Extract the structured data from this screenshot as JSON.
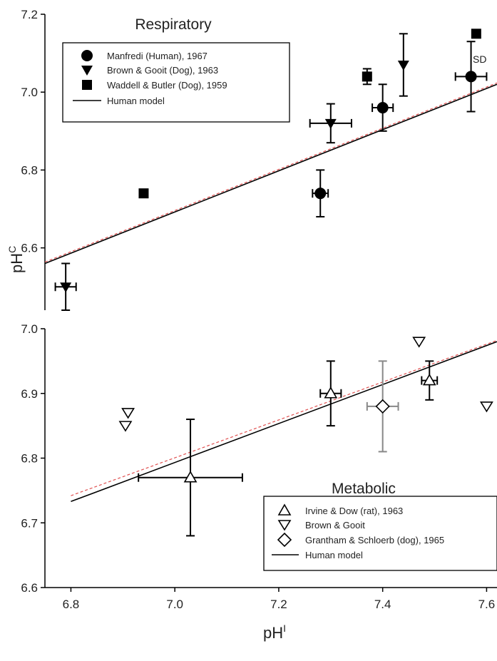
{
  "chart_data": [
    {
      "type": "scatter",
      "title": "Respiratory",
      "ylabel": "pHC",
      "ylabel_parts": {
        "main": "pH",
        "sup": "C"
      },
      "xlim": [
        6.75,
        7.62
      ],
      "ylim": [
        6.44,
        7.2
      ],
      "y_ticks": [
        "6.6",
        "6.8",
        "7.0",
        "7.2"
      ],
      "annotation": "SD",
      "legend_position": "top-left",
      "series": [
        {
          "name": "Manfredi (Human), 1967",
          "marker": "filled-circle",
          "points": [
            {
              "x": 7.28,
              "y": 6.74,
              "xerr": 0.015,
              "yerr": 0.06
            },
            {
              "x": 7.4,
              "y": 6.96,
              "xerr": 0.02,
              "yerr": 0.06
            },
            {
              "x": 7.57,
              "y": 7.04,
              "xerr": 0.03,
              "yerr": 0.09
            }
          ]
        },
        {
          "name": "Brown & Gooit (Dog), 1963",
          "marker": "filled-triangle-down",
          "points": [
            {
              "x": 6.79,
              "y": 6.5,
              "xerr": 0.02,
              "yerr": 0.06
            },
            {
              "x": 7.3,
              "y": 6.92,
              "xerr": 0.04,
              "yerr": 0.05
            },
            {
              "x": 7.44,
              "y": 7.07,
              "xerr": 0.0,
              "yerr": 0.08
            }
          ]
        },
        {
          "name": "Waddell & Butler (Dog), 1959",
          "marker": "filled-square",
          "points": [
            {
              "x": 6.94,
              "y": 6.74,
              "xerr": 0,
              "yerr": 0
            },
            {
              "x": 7.37,
              "y": 7.04,
              "xerr": 0,
              "yerr": 0.02
            },
            {
              "x": 7.58,
              "y": 7.15,
              "xerr": 0,
              "yerr": 0
            }
          ]
        },
        {
          "name": "Human model",
          "marker": "line",
          "line": {
            "x": [
              6.75,
              7.62
            ],
            "y": [
              6.56,
              7.02
            ]
          }
        }
      ],
      "secondary_line": {
        "style": "red-dashed",
        "x": [
          6.75,
          7.62
        ],
        "y": [
          6.56,
          7.02
        ]
      }
    },
    {
      "type": "scatter",
      "title": "Metabolic",
      "xlabel": "pHI",
      "xlabel_parts": {
        "main": "pH",
        "sup": "I"
      },
      "xlim": [
        6.75,
        7.62
      ],
      "ylim": [
        6.6,
        7.0
      ],
      "x_ticks": [
        "6.8",
        "7.0",
        "7.2",
        "7.4",
        "7.6"
      ],
      "y_ticks": [
        "6.6",
        "6.7",
        "6.8",
        "6.9",
        "7.0"
      ],
      "legend_position": "bottom-right",
      "series": [
        {
          "name": "Irvine & Dow (rat), 1963",
          "marker": "open-triangle-up",
          "points": [
            {
              "x": 7.03,
              "y": 6.77,
              "xerr": 0.1,
              "yerr": 0.09
            },
            {
              "x": 7.3,
              "y": 6.9,
              "xerr": 0.02,
              "yerr": 0.05
            },
            {
              "x": 7.49,
              "y": 6.92,
              "xerr": 0.015,
              "yerr": 0.03
            }
          ]
        },
        {
          "name": "Brown & Gooit",
          "marker": "open-triangle-down",
          "points": [
            {
              "x": 6.91,
              "y": 6.87
            },
            {
              "x": 6.905,
              "y": 6.85
            },
            {
              "x": 7.47,
              "y": 6.98
            },
            {
              "x": 7.6,
              "y": 6.88
            }
          ]
        },
        {
          "name": "Grantham & Schloerb (dog), 1965",
          "marker": "open-diamond",
          "points": [
            {
              "x": 7.4,
              "y": 6.88,
              "xerr": 0.03,
              "yerr": 0.07
            }
          ]
        },
        {
          "name": "Human model",
          "marker": "line",
          "line": {
            "x": [
              6.8,
              7.62
            ],
            "y": [
              6.733,
              6.98
            ]
          }
        }
      ],
      "secondary_line": {
        "style": "red-dashed",
        "x": [
          6.8,
          7.62
        ],
        "y": [
          6.742,
          6.982
        ]
      }
    }
  ]
}
